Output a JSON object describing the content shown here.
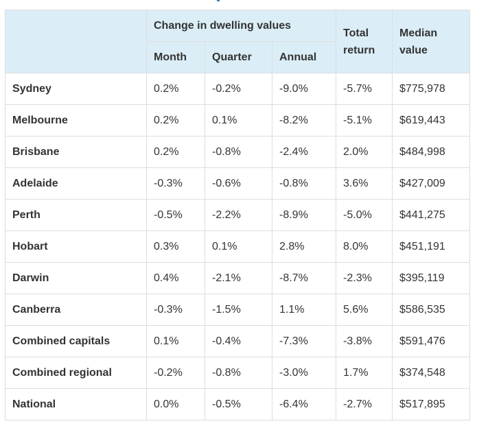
{
  "header": {
    "change_group": "Change in dwelling values",
    "month": "Month",
    "quarter": "Quarter",
    "annual": "Annual",
    "total_return_line1": "Total",
    "total_return_line2": "return",
    "median_line1": "Median",
    "median_line2": "value"
  },
  "rows": [
    {
      "city": "Sydney",
      "month": "0.2%",
      "quarter": "-0.2%",
      "annual": "-9.0%",
      "total_return": "-5.7%",
      "median": "$775,978"
    },
    {
      "city": "Melbourne",
      "month": "0.2%",
      "quarter": "0.1%",
      "annual": "-8.2%",
      "total_return": "-5.1%",
      "median": "$619,443"
    },
    {
      "city": "Brisbane",
      "month": "0.2%",
      "quarter": "-0.8%",
      "annual": "-2.4%",
      "total_return": "2.0%",
      "median": "$484,998"
    },
    {
      "city": "Adelaide",
      "month": "-0.3%",
      "quarter": "-0.6%",
      "annual": "-0.8%",
      "total_return": "3.6%",
      "median": "$427,009"
    },
    {
      "city": "Perth",
      "month": "-0.5%",
      "quarter": "-2.2%",
      "annual": "-8.9%",
      "total_return": "-5.0%",
      "median": "$441,275"
    },
    {
      "city": "Hobart",
      "month": "0.3%",
      "quarter": "0.1%",
      "annual": "2.8%",
      "total_return": "8.0%",
      "median": "$451,191"
    },
    {
      "city": "Darwin",
      "month": "0.4%",
      "quarter": "-2.1%",
      "annual": "-8.7%",
      "total_return": "-2.3%",
      "median": "$395,119"
    },
    {
      "city": "Canberra",
      "month": "-0.3%",
      "quarter": "-1.5%",
      "annual": "1.1%",
      "total_return": "5.6%",
      "median": "$586,535"
    },
    {
      "city": "Combined capitals",
      "month": "0.1%",
      "quarter": "-0.4%",
      "annual": "-7.3%",
      "total_return": "-3.8%",
      "median": "$591,476"
    },
    {
      "city": "Combined regional",
      "month": "-0.2%",
      "quarter": "-0.8%",
      "annual": "-3.0%",
      "total_return": "1.7%",
      "median": "$374,548"
    },
    {
      "city": "National",
      "month": "0.0%",
      "quarter": "-0.5%",
      "annual": "-6.4%",
      "total_return": "-2.7%",
      "median": "$517,895"
    }
  ],
  "colors": {
    "header_background": "#dbeef7",
    "border": "#dddddd",
    "text": "#333333"
  }
}
